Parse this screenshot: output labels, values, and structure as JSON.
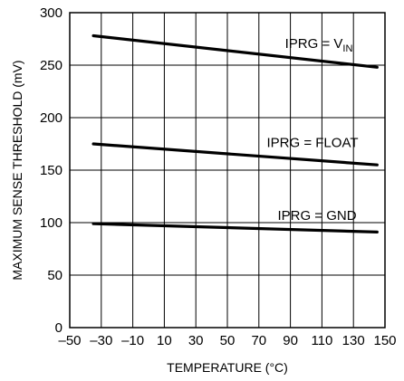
{
  "chart_data": {
    "type": "line",
    "title": "",
    "xlabel": "TEMPERATURE (°C)",
    "ylabel": "MAXIMUM SENSE THRESHOLD (mV)",
    "xlim": [
      -50,
      150
    ],
    "ylim": [
      0,
      300
    ],
    "x_ticks": [
      -50,
      -30,
      -10,
      10,
      30,
      50,
      70,
      90,
      110,
      130,
      150
    ],
    "x_tick_labels": [
      "–50",
      "–30",
      "–10",
      "10",
      "30",
      "50",
      "70",
      "90",
      "110",
      "130",
      "150"
    ],
    "y_ticks": [
      0,
      50,
      100,
      150,
      200,
      250,
      300
    ],
    "y_tick_labels": [
      "0",
      "50",
      "100",
      "150",
      "200",
      "250",
      "300"
    ],
    "grid": true,
    "legend": "none",
    "series": [
      {
        "name": "IPRG = V_IN",
        "label_main": "IPRG = V",
        "label_sub": "IN",
        "x": [
          -35,
          145
        ],
        "y": [
          278,
          248
        ]
      },
      {
        "name": "IPRG = FLOAT",
        "label_main": "IPRG = FLOAT",
        "label_sub": "",
        "x": [
          -35,
          145
        ],
        "y": [
          175,
          155
        ]
      },
      {
        "name": "IPRG = GND",
        "label_main": "IPRG = GND",
        "label_sub": "",
        "x": [
          -35,
          145
        ],
        "y": [
          99,
          91
        ]
      }
    ]
  }
}
